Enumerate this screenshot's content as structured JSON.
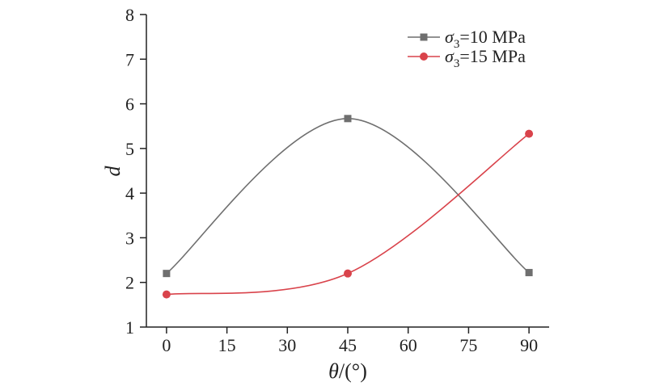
{
  "chart_data": {
    "type": "line",
    "x": [
      0,
      45,
      90
    ],
    "series": [
      {
        "name": "σ3=10 MPa",
        "name_main": "σ",
        "name_sub": "3",
        "name_rest": "=10 MPa",
        "color": "#6f6f6f",
        "marker": "square",
        "values": [
          2.2,
          5.67,
          2.22
        ]
      },
      {
        "name": "σ3=15 MPa",
        "name_main": "σ",
        "name_sub": "3",
        "name_rest": "=15 MPa",
        "color": "#d9434b",
        "marker": "circle",
        "values": [
          1.73,
          2.2,
          5.33
        ]
      }
    ],
    "xticks": [
      "0",
      "15",
      "30",
      "45",
      "60",
      "75",
      "90"
    ],
    "yticks": [
      "1",
      "2",
      "3",
      "4",
      "5",
      "6",
      "7",
      "8"
    ],
    "xlim": [
      -5,
      95
    ],
    "ylim": [
      1,
      8
    ],
    "xlabel_main": "θ",
    "xlabel_rest": "/(°)",
    "ylabel": "d",
    "legend_position": "top-right",
    "grid": false
  }
}
